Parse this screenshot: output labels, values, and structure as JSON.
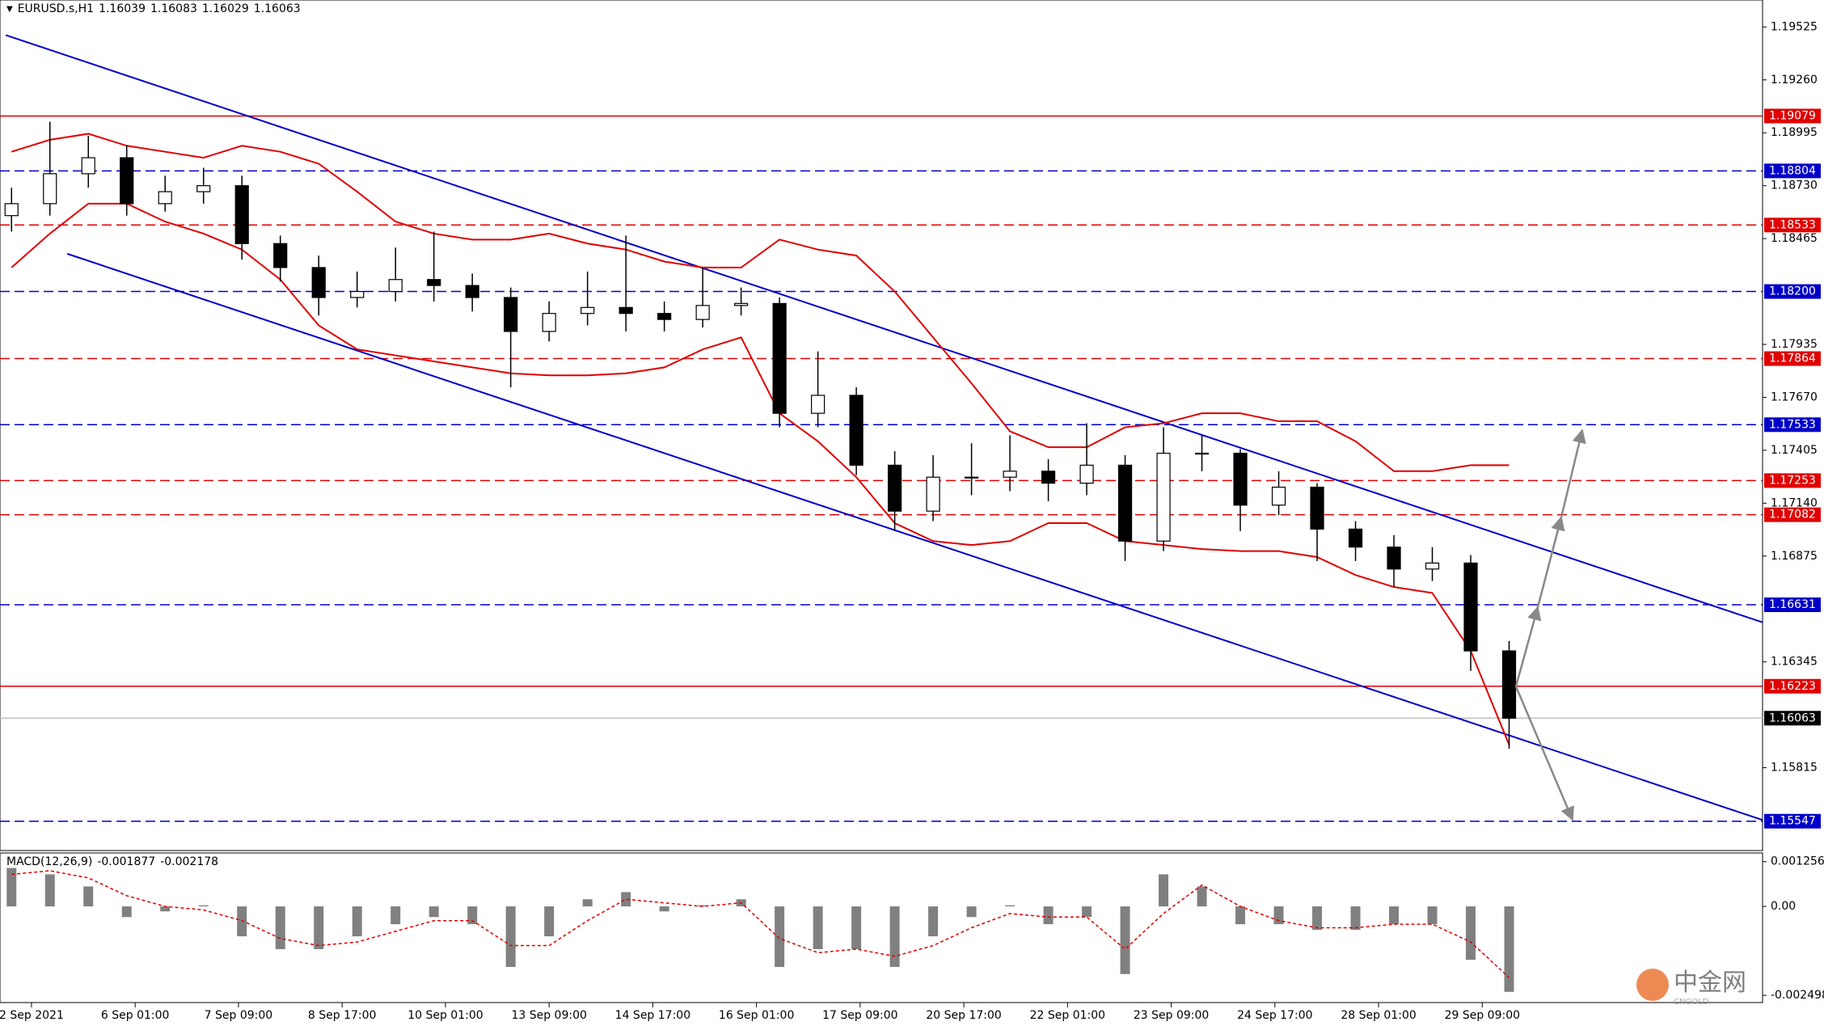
{
  "chart_data": [
    {
      "type": "candlestick",
      "title": "EURUSD.s,H1",
      "header_values": [
        1.16039,
        1.16083,
        1.16029,
        1.16063
      ],
      "x": [
        0,
        1,
        2,
        3,
        4,
        5,
        6,
        7,
        8,
        9,
        10,
        11,
        12,
        13,
        14,
        15,
        16,
        17,
        18,
        19,
        20,
        21,
        22,
        23,
        24,
        25,
        26,
        27,
        28,
        29,
        30,
        31,
        32,
        33,
        34,
        35,
        36,
        37,
        38,
        39
      ],
      "open": [
        1.1858,
        1.1864,
        1.1879,
        1.1887,
        1.1864,
        1.187,
        1.1873,
        1.1844,
        1.1832,
        1.1817,
        1.182,
        1.1826,
        1.1823,
        1.1817,
        1.18,
        1.1809,
        1.1812,
        1.1809,
        1.1806,
        1.1813,
        1.1814,
        1.1759,
        1.1768,
        1.1733,
        1.171,
        1.1727,
        1.1727,
        1.173,
        1.1724,
        1.1733,
        1.1695,
        1.1739,
        1.1739,
        1.1713,
        1.1722,
        1.1701,
        1.1692,
        1.1681,
        1.1684,
        1.164
      ],
      "high": [
        1.1872,
        1.1905,
        1.1898,
        1.1893,
        1.1878,
        1.1882,
        1.1878,
        1.1848,
        1.1838,
        1.183,
        1.1842,
        1.185,
        1.1829,
        1.1822,
        1.1815,
        1.183,
        1.1848,
        1.1815,
        1.1832,
        1.1822,
        1.1817,
        1.179,
        1.1772,
        1.174,
        1.1738,
        1.1744,
        1.1748,
        1.1736,
        1.1754,
        1.1738,
        1.1752,
        1.1748,
        1.1741,
        1.173,
        1.1724,
        1.1705,
        1.1698,
        1.1692,
        1.1688,
        1.1645
      ],
      "low": [
        1.185,
        1.1858,
        1.1872,
        1.1858,
        1.186,
        1.1864,
        1.1836,
        1.1825,
        1.1808,
        1.1812,
        1.1815,
        1.1815,
        1.181,
        1.1772,
        1.1795,
        1.1803,
        1.18,
        1.18,
        1.1802,
        1.1808,
        1.1752,
        1.1752,
        1.1728,
        1.17,
        1.1705,
        1.1718,
        1.172,
        1.1715,
        1.1718,
        1.1685,
        1.169,
        1.173,
        1.17,
        1.1708,
        1.1685,
        1.1685,
        1.1672,
        1.1675,
        1.163,
        1.1591
      ],
      "close": [
        1.1864,
        1.1879,
        1.1887,
        1.1864,
        1.187,
        1.1873,
        1.1844,
        1.1832,
        1.1817,
        1.182,
        1.1826,
        1.1823,
        1.1817,
        1.18,
        1.1809,
        1.1812,
        1.1809,
        1.1806,
        1.1813,
        1.1814,
        1.1759,
        1.1768,
        1.1733,
        1.171,
        1.1727,
        1.1727,
        1.173,
        1.1724,
        1.1733,
        1.1695,
        1.1739,
        1.1739,
        1.1713,
        1.1722,
        1.1701,
        1.1692,
        1.1681,
        1.1684,
        1.164,
        1.16063
      ],
      "series": [
        {
          "color": "#e00000",
          "values": [
            1.189,
            1.1896,
            1.1899,
            1.1893,
            1.189,
            1.1887,
            1.1893,
            1.189,
            1.1884,
            1.187,
            1.1855,
            1.1849,
            1.1846,
            1.1846,
            1.1849,
            1.1844,
            1.1841,
            1.1835,
            1.1832,
            1.1832,
            1.1846,
            1.1841,
            1.1838,
            1.182,
            1.1797,
            1.1774,
            1.175,
            1.1742,
            1.1742,
            1.1752,
            1.1754,
            1.1759,
            1.1759,
            1.1755,
            1.1755,
            1.1745,
            1.173,
            1.173,
            1.1733,
            1.1733
          ]
        },
        {
          "color": "#e00000",
          "values": [
            1.1832,
            1.1849,
            1.1864,
            1.1864,
            1.1855,
            1.1849,
            1.1841,
            1.1826,
            1.1803,
            1.1791,
            1.1788,
            1.1785,
            1.1782,
            1.1779,
            1.1778,
            1.1778,
            1.1779,
            1.1782,
            1.1791,
            1.1797,
            1.1759,
            1.1745,
            1.1727,
            1.1704,
            1.1695,
            1.1693,
            1.1695,
            1.1704,
            1.1704,
            1.1695,
            1.1693,
            1.1691,
            1.169,
            1.169,
            1.1687,
            1.1678,
            1.1672,
            1.1669,
            1.164,
            1.1593
          ]
        }
      ],
      "trendlines": [
        {
          "color": "#0000c8",
          "x": [
            -0.15,
            45.6
          ],
          "y": [
            1.19484,
            1.16543
          ]
        },
        {
          "color": "#0000c8",
          "x": [
            1.45,
            45.6
          ],
          "y": [
            1.18389,
            1.15553
          ]
        }
      ],
      "levels": [
        {
          "value": 1.19079,
          "color": "#e00000",
          "dash": false
        },
        {
          "value": 1.18804,
          "color": "#0000c8",
          "dash": true
        },
        {
          "value": 1.18533,
          "color": "#e00000",
          "dash": true
        },
        {
          "value": 1.182,
          "label": "1.18200",
          "color": "#0000c8",
          "dash": true
        },
        {
          "value": 1.17864,
          "color": "#e00000",
          "dash": true
        },
        {
          "value": 1.17533,
          "color": "#0000c8",
          "dash": true
        },
        {
          "value": 1.17253,
          "color": "#e00000",
          "dash": true
        },
        {
          "value": 1.17082,
          "color": "#e00000",
          "dash": true
        },
        {
          "value": 1.16631,
          "color": "#0000c8",
          "dash": true
        },
        {
          "value": 1.16223,
          "color": "#e00000",
          "dash": false
        },
        {
          "value": 1.16063,
          "color": "#000000",
          "line_color": "#c0c0c0",
          "dash": false
        },
        {
          "value": 1.15547,
          "color": "#0000c8",
          "dash": true
        }
      ],
      "xlim": [
        -0.3,
        45.6
      ],
      "ylim": [
        1.154,
        1.1966
      ],
      "yticks": [
        {
          "value": 1.19525,
          "label": "1.19525"
        },
        {
          "value": 1.1926,
          "label": "1.19260"
        },
        {
          "value": 1.18995,
          "label": "1.18995"
        },
        {
          "value": 1.1873,
          "label": "1.18730"
        },
        {
          "value": 1.18465,
          "label": "1.18465"
        },
        {
          "value": 1.17935,
          "label": "1.17935"
        },
        {
          "value": 1.1767,
          "label": "1.17670"
        },
        {
          "value": 1.17405,
          "label": "1.17405"
        },
        {
          "value": 1.1714,
          "label": "1.17140"
        },
        {
          "value": 1.16875,
          "label": "1.16875"
        },
        {
          "value": 1.16345,
          "label": "1.16345"
        },
        {
          "value": 1.15815,
          "label": "1.15815"
        }
      ],
      "xticks": [
        {
          "value": 0.52,
          "label": "2 Sep 2021"
        },
        {
          "value": 3.22,
          "label": "6 Sep 01:00"
        },
        {
          "value": 5.91,
          "label": "7 Sep 09:00"
        },
        {
          "value": 8.61,
          "label": "8 Sep 17:00"
        },
        {
          "value": 11.3,
          "label": "10 Sep 01:00"
        },
        {
          "value": 14.0,
          "label": "13 Sep 09:00"
        },
        {
          "value": 16.7,
          "label": "14 Sep 17:00"
        },
        {
          "value": 19.4,
          "label": "16 Sep 01:00"
        },
        {
          "value": 22.1,
          "label": "17 Sep 09:00"
        },
        {
          "value": 24.8,
          "label": "20 Sep 17:00"
        },
        {
          "value": 27.5,
          "label": "22 Sep 01:00"
        },
        {
          "value": 30.2,
          "label": "23 Sep 09:00"
        },
        {
          "value": 32.9,
          "label": "24 Sep 17:00"
        },
        {
          "value": 35.6,
          "label": "28 Sep 01:00"
        },
        {
          "value": 38.3,
          "label": "29 Sep 09:00"
        }
      ]
    },
    {
      "type": "macd",
      "title": "MACD(12,26,9)",
      "header_values": [
        -0.001877,
        -0.002178
      ],
      "x": [
        0,
        1,
        2,
        3,
        4,
        5,
        6,
        7,
        8,
        9,
        10,
        11,
        12,
        13,
        14,
        15,
        16,
        17,
        18,
        19,
        20,
        21,
        22,
        23,
        24,
        25,
        26,
        27,
        28,
        29,
        30,
        31,
        32,
        33,
        34,
        35,
        36,
        37,
        38,
        39
      ],
      "series": [
        {
          "color": "#808080",
          "values": [
            0.00108,
            0.0009,
            0.00056,
            -0.0003,
            -0.00014,
            3e-05,
            -0.00084,
            -0.0012,
            -0.0012,
            -0.00084,
            -0.0005,
            -0.0003,
            -0.0005,
            -0.0017,
            -0.00084,
            0.0002,
            0.0004,
            -0.00014,
            3e-05,
            0.0002,
            -0.0017,
            -0.0012,
            -0.0012,
            -0.0017,
            -0.00084,
            -0.0003,
            3e-05,
            -0.0005,
            -0.0003,
            -0.0019,
            0.0009,
            0.00056,
            -0.0005,
            -0.0005,
            -0.00066,
            -0.00066,
            -0.0005,
            -0.0005,
            -0.0015,
            -0.0024
          ]
        },
        {
          "color": "#e00000",
          "values": [
            0.0009,
            0.001,
            0.0008,
            0.0003,
            0,
            -0.0001,
            -0.0004,
            -0.0009,
            -0.0011,
            -0.001,
            -0.0007,
            -0.0004,
            -0.0004,
            -0.0011,
            -0.0011,
            -0.0004,
            0.0002,
            0.0001,
            0,
            0.0001,
            -0.0009,
            -0.0013,
            -0.0012,
            -0.0014,
            -0.0011,
            -0.0006,
            -0.0002,
            -0.0003,
            -0.0003,
            -0.0012,
            -0.0002,
            0.0006,
            0,
            -0.0004,
            -0.0006,
            -0.0006,
            -0.0005,
            -0.0005,
            -0.001,
            -0.002
          ]
        }
      ],
      "xlim": [
        -0.3,
        45.6
      ],
      "ylim": [
        -0.0027,
        0.0015
      ],
      "yticks": [
        0.001256,
        {
          "value": 0,
          "label": "0.00"
        },
        -0.002498
      ]
    }
  ],
  "watermark": {
    "text": "中金网",
    "subtext": "CNGOLD"
  }
}
